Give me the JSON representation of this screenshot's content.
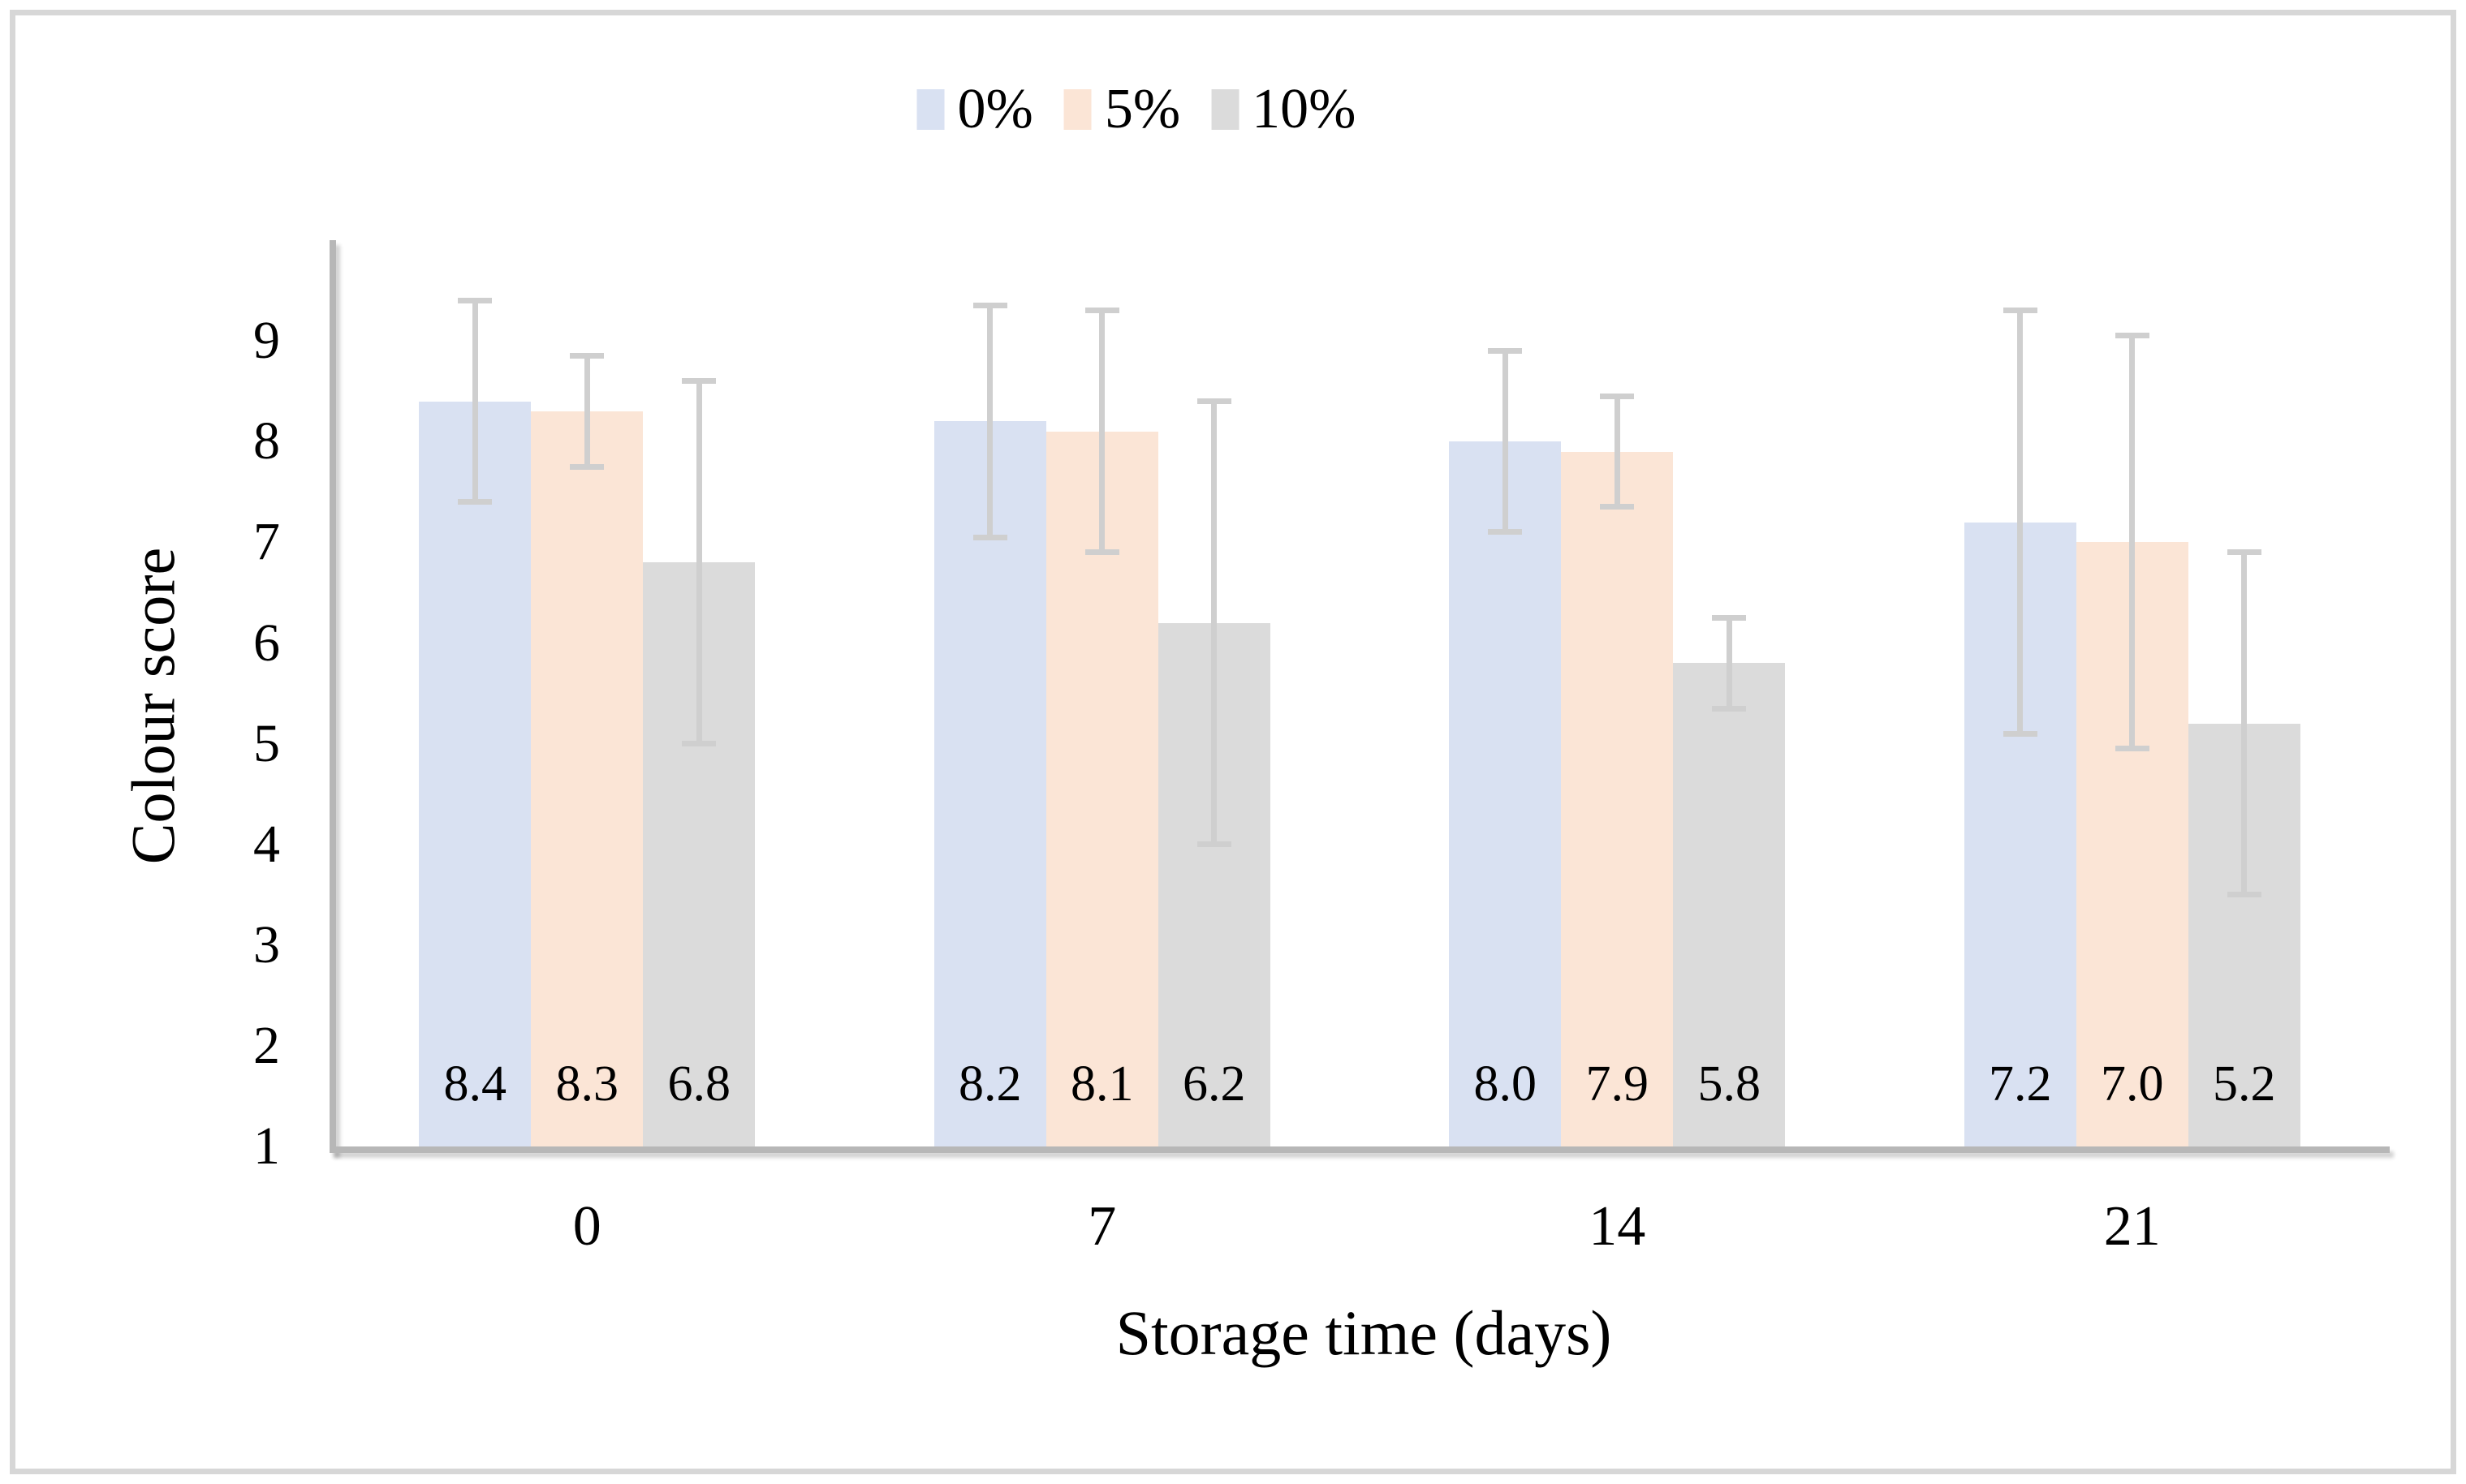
{
  "chart_data": {
    "type": "bar",
    "title": "",
    "xlabel": "Storage time (days)",
    "ylabel": "Colour score",
    "categories": [
      "0",
      "7",
      "14",
      "21"
    ],
    "series": [
      {
        "name": "0%",
        "color": "#d9e1f2",
        "values": [
          8.4,
          8.2,
          8.0,
          7.2
        ],
        "labels": [
          "8.4",
          "8.2",
          "8.0",
          "7.2"
        ],
        "errors": [
          1.0,
          1.15,
          0.9,
          2.1
        ]
      },
      {
        "name": "5%",
        "color": "#fbe5d6",
        "values": [
          8.3,
          8.1,
          7.9,
          7.0
        ],
        "labels": [
          "8.3",
          "8.1",
          "7.9",
          "7.0"
        ],
        "errors": [
          0.55,
          1.2,
          0.55,
          2.05
        ]
      },
      {
        "name": "10%",
        "color": "#dbdbdb",
        "values": [
          6.8,
          6.2,
          5.8,
          5.2
        ],
        "labels": [
          "6.8",
          "6.2",
          "5.8",
          "5.2"
        ],
        "errors": [
          1.8,
          2.2,
          0.45,
          1.7
        ]
      }
    ],
    "y_ticks": [
      "1",
      "2",
      "3",
      "4",
      "5",
      "6",
      "7",
      "8",
      "9"
    ],
    "ylim": [
      1,
      10
    ],
    "grid": false,
    "legend_position": "top-center",
    "error_bar_color": "#cfcfcf",
    "axis_color": "#b7b7b7",
    "data_label_position": "inside-base"
  }
}
